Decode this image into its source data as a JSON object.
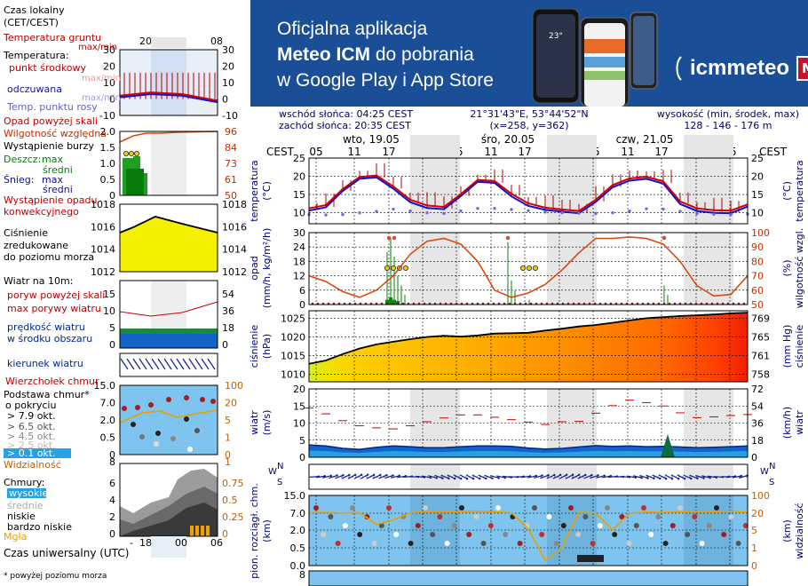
{
  "banner": {
    "line1": "Oficjalna aplikacja",
    "line2_bold": "Meteo ICM",
    "line2_rest": " do pobrania",
    "line3": "w Google Play i App Store",
    "logo_text": "icmmeteo",
    "logo_badge": "M°",
    "phone_temp": "23°",
    "colors": {
      "background": "#1a4f98",
      "text": "#ffffff",
      "badge": "#c8102e"
    }
  },
  "info": {
    "sunrise": "wschód słońca: 04:25 CEST",
    "sunset": "zachód słońca: 20:35 CEST",
    "coords": "21°31'43\"E, 53°44'52\"N",
    "grid": "(x=258,  y=362)",
    "height_label": "wysokość (min, środek, max)",
    "height_values": "128 - 146 - 176 m"
  },
  "timeaxis": {
    "cest_label": "CEST",
    "days": [
      "wto, 19.05",
      "śro, 20.05",
      "czw, 21.05"
    ],
    "hours": [
      "05",
      "11",
      "17",
      "23",
      "05",
      "11",
      "17",
      "23",
      "05",
      "11",
      "17",
      "23",
      "05"
    ]
  },
  "legend": {
    "time_title": "Czas lokalny\n(CET/CEST)",
    "time_ticks": [
      "20",
      "02",
      "08"
    ],
    "temp_ground": "Temperatura gruntu",
    "temp_ground_mm": "max/min",
    "temp_title": "Temperatura:",
    "temp_mid": "punkt środkowy",
    "temp_maxmin": "max/min",
    "temp_feels": "odczuwana",
    "temp_dew": "Temp. punktu rosy",
    "temp_feels_mm": "max/min",
    "temp_ticks": [
      "30",
      "20",
      "10",
      "0",
      "-10"
    ],
    "precip_above": "Opad powyżej skali",
    "humidity": "Wilgotność względna",
    "storm": "Wystąpienie burzy",
    "rain": "Deszcz:",
    "rain_max": "max",
    "rain_mid": "średni",
    "snow": "Śnieg:",
    "snow_max": "max",
    "snow_mid": "średni",
    "precip_occ": "Wystąpienie opadu",
    "precip_occ2": "konwekcyjnego",
    "precip_ticks": [
      "2.0",
      "1.5",
      "1.0",
      "0.5",
      "0"
    ],
    "hum_ticks": [
      "96",
      "84",
      "73",
      "61",
      "50"
    ],
    "pres_title": "Ciśnienie",
    "pres_title2": "zredukowane",
    "pres_title3": "do poziomu morza",
    "pres_ticks": [
      "1018",
      "1016",
      "1014",
      "1012"
    ],
    "wind_title": "Wiatr na 10m:",
    "gust_above": "poryw powyżej skali",
    "gust_max": "max porywy wiatru",
    "wind_speed": "prędkość wiatru",
    "wind_speed2": "w środku obszaru",
    "wind_ticks": [
      "15",
      "10",
      "5",
      "0"
    ],
    "wind_ticks_r": [
      "54",
      "36",
      "18",
      "0"
    ],
    "wind_dir": "kierunek wiatru",
    "cloud_top": "Wierzchołek chmur",
    "cloud_base": "Podstawa chmur*",
    "cloud_base2": "o pokryciu",
    "okt1": "> 7.9 okt.",
    "okt2": "> 6.5 okt.",
    "okt3": "> 4.5 okt.",
    "okt4": "> 2.5 okt.",
    "okt5": "> 0.1 okt.",
    "cloud_ticks": [
      "15.0",
      "7.0",
      "2.0",
      "0.5",
      "0"
    ],
    "vis_ticks": [
      "100",
      "20",
      "5",
      "1",
      "0"
    ],
    "visibility": "Widzialność",
    "vis_bottom": "8",
    "vis_bottom_r": "1",
    "clouds_title": "Chmury:",
    "cl_high": "wysokie",
    "cl_mid": "średnie",
    "cl_low": "niskie",
    "cl_vlow": "bardzo niskie",
    "fog": "Mgła",
    "cl_ticks": [
      "6",
      "4",
      "2",
      "0"
    ],
    "cl_ticks_r": [
      "0.75",
      "0.5",
      "0.25",
      "0"
    ],
    "utc_title": "Czas uniwersalny (UTC)",
    "utc_ticks": [
      "18",
      "00",
      "06"
    ],
    "footnote": "* powyżej poziomu morza"
  },
  "panel_labels": {
    "temp_l": "temperatura",
    "temp_l_unit": "(°C)",
    "temp_r": "temperatura",
    "temp_r_unit": "(°C)",
    "precip_l": "opad",
    "precip_l_unit": "(mm/h, kg/m²/h)",
    "precip_r": "wilgotność wzgl.",
    "precip_r_unit": "(%)",
    "pres_l": "ciśnienie",
    "pres_l_unit": "(hPa)",
    "pres_r": "ciśnienie",
    "pres_r_unit": "(mm Hg)",
    "wind_l": "wiatr",
    "wind_l_unit": "(m/s)",
    "wind_r": "wiatr",
    "wind_r_unit": "(km/h)",
    "cloud_l": "pion. rozciągł. chm.",
    "cloud_l_unit": "(km)",
    "cloud_r": "widzialność",
    "cloud_r_unit": "(km)",
    "compass_n": "N",
    "compass_s": "S",
    "compass_w": "W",
    "compass_e": "E"
  },
  "chart_data": {
    "type": "line",
    "x_hours_cest": [
      "05",
      "11",
      "17",
      "23",
      "05",
      "11",
      "17",
      "23",
      "05",
      "11",
      "17",
      "23",
      "05"
    ],
    "temperature": {
      "yticks": [
        "25",
        "20",
        "15",
        "10"
      ],
      "ylim": [
        7,
        25
      ],
      "series": [
        {
          "name": "punkt środkowy",
          "values": [
            11.2,
            12.1,
            16.5,
            19.8,
            20.2,
            17.2,
            13.6,
            12.0,
            11.6,
            15.1,
            19.0,
            18.7,
            15.2,
            12.6,
            11.4,
            10.9,
            10.5,
            13.6,
            17.6,
            19.4,
            19.9,
            18.6,
            13.1,
            11.2,
            10.7,
            10.6,
            12.3
          ]
        },
        {
          "name": "odczuwana",
          "values": [
            10.6,
            11.5,
            16.0,
            19.3,
            19.7,
            16.6,
            12.9,
            11.3,
            11.0,
            14.6,
            18.5,
            18.2,
            14.5,
            11.9,
            10.8,
            10.3,
            9.9,
            13.0,
            17.0,
            18.8,
            19.3,
            18.0,
            12.4,
            10.5,
            10.0,
            9.9,
            11.7
          ]
        },
        {
          "name": "Temp. punktu rosy",
          "values": [
            9.5,
            9.4,
            9.5,
            10.0,
            10.4,
            11.0,
            10.5,
            10.0,
            9.8,
            10.5,
            11.2,
            11.2,
            10.9,
            10.6,
            10.2,
            10.0,
            9.9,
            9.8,
            10.0,
            10.5,
            11.1,
            11.0,
            10.4,
            9.8,
            9.6,
            9.5,
            9.6
          ]
        }
      ],
      "right_ticks": [
        "25",
        "20",
        "15",
        "10"
      ]
    },
    "precipitation": {
      "left_ticks": [
        "30",
        "24",
        "18",
        "12",
        "6",
        "0"
      ],
      "right_ticks": [
        "100",
        "90",
        "80",
        "70",
        "60",
        "50"
      ],
      "humidity_pct": [
        70,
        66,
        59,
        55,
        60,
        70,
        85,
        94,
        96,
        92,
        80,
        60,
        55,
        58,
        64,
        74,
        86,
        96,
        96,
        97,
        96,
        92,
        80,
        63,
        56,
        57,
        70
      ]
    },
    "pressure": {
      "left_ticks": [
        "1025",
        "1020",
        "1015",
        "1010"
      ],
      "right_ticks": [
        "769",
        "765",
        "761",
        "758"
      ],
      "values_hpa": [
        1012.8,
        1013.7,
        1015.4,
        1016.9,
        1018.0,
        1018.7,
        1019.4,
        1020.0,
        1020.3,
        1020.1,
        1020.4,
        1020.9,
        1021.0,
        1021.1,
        1021.7,
        1022.2,
        1022.8,
        1023.2,
        1023.8,
        1024.4,
        1025.0,
        1025.3,
        1025.6,
        1025.8,
        1026.0,
        1026.3,
        1026.5
      ]
    },
    "wind": {
      "left_ticks": [
        "20",
        "15",
        "10",
        "5",
        "0"
      ],
      "right_ticks": [
        "72",
        "54",
        "36",
        "18",
        "0"
      ],
      "speed_ms": [
        3.6,
        3.3,
        2.6,
        2.3,
        2.9,
        3.3,
        3.1,
        2.8,
        2.8,
        3.1,
        3.3,
        3.3,
        3.2,
        2.7,
        2.4,
        2.6,
        3.0,
        3.4,
        3.2,
        3.3,
        3.1,
        3.2,
        3.0,
        2.8,
        2.9,
        3.1,
        3.3
      ],
      "gust_ms": [
        14.4,
        12.7,
        10.7,
        9.2,
        8.6,
        8.3,
        9.2,
        10.4,
        11.5,
        12.4,
        12.4,
        11.7,
        11.0,
        10.3,
        9.6,
        10.4,
        10.5,
        12.9,
        15.1,
        16.7,
        16.0,
        15.0,
        13.0,
        11.6,
        11.8,
        12.2,
        12.5
      ]
    },
    "clouds": {
      "left_ticks": [
        "15.0",
        "7.0",
        "2.0",
        "0.5",
        "0.0"
      ],
      "right_ticks": [
        "100",
        "20",
        "5",
        "1",
        "0"
      ],
      "visibility_km": [
        22,
        24,
        21,
        23,
        10,
        14,
        22,
        28,
        25,
        27,
        29,
        26,
        22,
        6,
        0.3,
        1,
        24,
        20,
        5,
        20,
        25,
        24,
        26,
        28,
        27,
        30,
        24
      ]
    },
    "legend_temp": {
      "ylim": [
        -10,
        30
      ]
    },
    "legend_precip_ylim": [
      0,
      2.0
    ],
    "legend_pressure_ylim": [
      1012,
      1018
    ],
    "legend_wind_ylim": [
      0,
      20
    ]
  }
}
